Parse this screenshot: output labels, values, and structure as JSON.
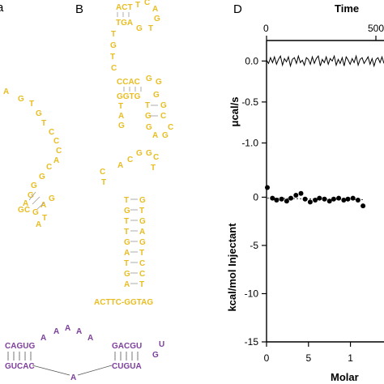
{
  "panels": {
    "b": {
      "letter": "B",
      "top_hairpin": {
        "row1": "ACT",
        "row1b": "T",
        "row1c": "C",
        "row1d": "A",
        "row2": "TGA",
        "row2b": "G",
        "row2c": "T",
        "row2d": "G",
        "stem": [
          "T",
          "G",
          "T",
          "C"
        ],
        "row_cac": "CCAC",
        "row_cac_g": "G",
        "row_cac_g2": "G",
        "row_ggtg": "GGTG",
        "row_ggtg_g": "G",
        "row3": [
          "T",
          "A",
          "G"
        ],
        "right3": [
          "T",
          "G",
          "C"
        ],
        "tail": [
          "G",
          "A",
          "G",
          "C"
        ]
      },
      "bottom_hairpin": {
        "loop": [
          "A",
          "C",
          "G",
          "G",
          "C",
          "T",
          "C",
          "T"
        ],
        "left_stem": [
          "T",
          "G",
          "T",
          "T",
          "G",
          "A",
          "T",
          "G",
          "A"
        ],
        "right_stem": [
          "G",
          "T",
          "G",
          "A",
          "G",
          "T",
          "C",
          "C",
          "T"
        ],
        "base": "ACTTC-GGTAG"
      }
    },
    "a_fragment": {
      "nts": [
        "A",
        "G",
        "T",
        "G",
        "T",
        "C",
        "C",
        "C",
        "A",
        "C",
        "G",
        "G",
        "G",
        "A",
        "G",
        "C",
        "G",
        "A",
        "G",
        "T",
        "A"
      ]
    },
    "c_fragment": {
      "top_left": "CAGUG",
      "loop_top": [
        "A",
        "A",
        "A",
        "A",
        "A"
      ],
      "top_right": "GACGU",
      "cap_u": "U",
      "bottom_left": "GUCAC",
      "bottom_mid": "A",
      "bottom_right": "CUGUA",
      "cap_g": "G"
    },
    "d": {
      "letter": "D",
      "top_axis_label": "Time",
      "top_ticks": [
        "0",
        "500"
      ],
      "upper_y_label": "μcal/s",
      "upper_y_ticks": [
        "0.0",
        "-0.5",
        "-1.0"
      ],
      "lower_y_label": "kcal/mol Injectant",
      "lower_y_ticks": [
        "0",
        "-5",
        "-10",
        "-15"
      ],
      "bottom_ticks": [
        "0",
        "5",
        "1"
      ],
      "bottom_axis_label": "Molar"
    }
  },
  "chart_data": [
    {
      "type": "line",
      "title": "",
      "xlabel": "Time",
      "ylabel": "μcal/s",
      "xlim": [
        0,
        700
      ],
      "ylim": [
        -1.45,
        0.25
      ],
      "series": [
        {
          "values": [
            0.01,
            -0.03,
            0.04,
            -0.02,
            0.05,
            -0.04,
            0.02,
            0.06,
            -0.05,
            0.03,
            -0.01,
            0.05,
            -0.06,
            0.02,
            0.04,
            -0.03,
            0.06,
            -0.02,
            0.01,
            -0.05,
            0.04,
            0.02,
            -0.04,
            0.05,
            -0.03,
            0.03,
            0.06,
            -0.06,
            0.02,
            -0.02,
            0.05,
            -0.04,
            0.03,
            0.0,
            0.06,
            -0.05,
            0.02,
            -0.03,
            0.04,
            -0.06,
            0.05,
            0.01,
            -0.04,
            0.03,
            -0.02,
            0.06,
            -0.05,
            0.02,
            0.04,
            -0.03,
            0.01,
            0.05,
            -0.04,
            0.03,
            -0.06,
            0.02,
            0.04,
            -0.02,
            0.05,
            -0.03
          ]
        }
      ]
    },
    {
      "type": "scatter",
      "title": "",
      "xlabel": "Molar",
      "ylabel": "kcal/mol Injectant",
      "xlim": [
        0,
        14
      ],
      "ylim": [
        -15,
        1.8
      ],
      "series": [
        {
          "x": [
            0.1,
            0.7,
            1.2,
            1.8,
            2.4,
            2.9,
            3.5,
            4.1,
            4.6,
            5.2,
            5.8,
            6.3,
            6.9,
            7.5,
            8.0,
            8.6,
            9.2,
            9.7,
            10.3,
            10.9,
            11.5
          ],
          "y": [
            1.0,
            -0.1,
            -0.3,
            -0.2,
            -0.4,
            -0.1,
            0.2,
            0.4,
            -0.2,
            -0.5,
            -0.3,
            -0.1,
            -0.2,
            -0.4,
            -0.2,
            -0.1,
            -0.3,
            -0.2,
            -0.1,
            -0.3,
            -0.9
          ]
        }
      ]
    }
  ]
}
